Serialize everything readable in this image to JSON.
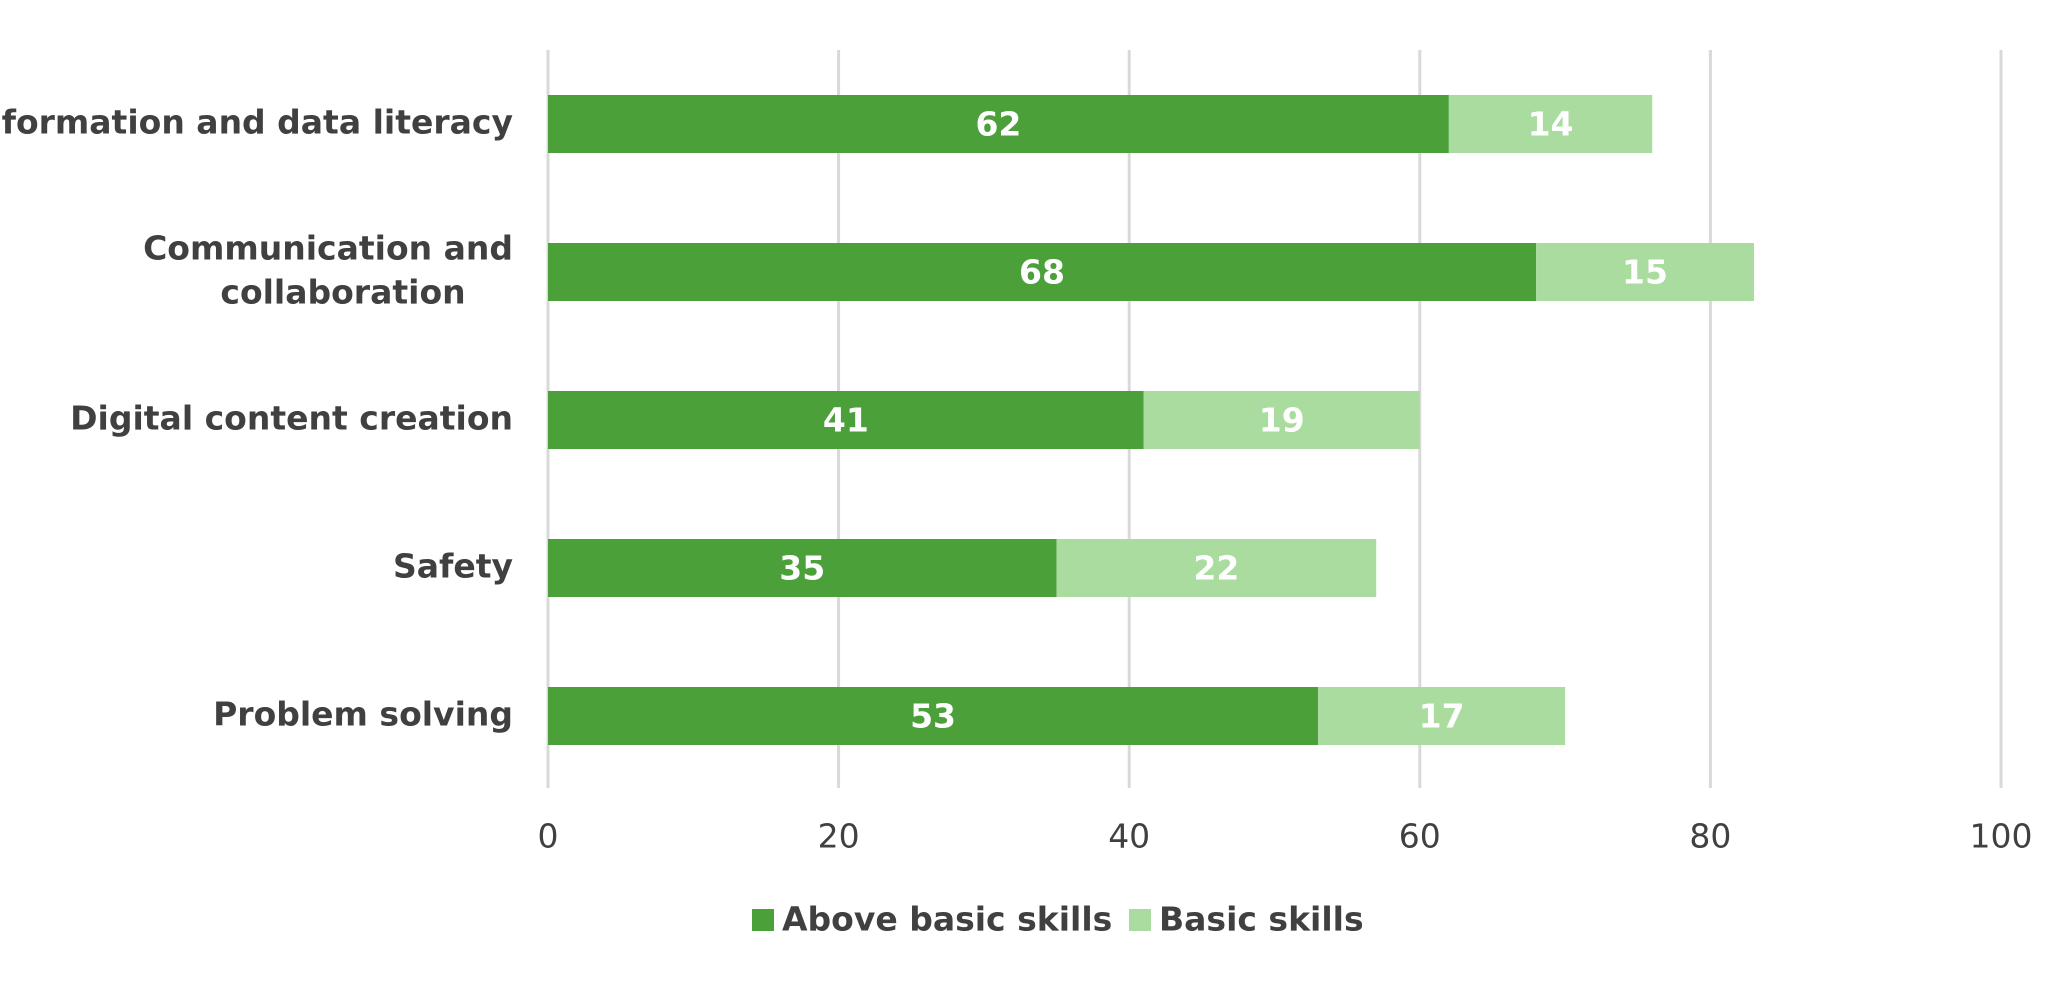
{
  "chart_data": {
    "type": "bar",
    "orientation": "horizontal",
    "stacked": true,
    "categories": [
      [
        "Information and data literacy"
      ],
      [
        "Communication and",
        "collaboration"
      ],
      [
        "Digital content creation"
      ],
      [
        "Safety"
      ],
      [
        "Problem solving"
      ]
    ],
    "series": [
      {
        "name": "Above basic skills",
        "color": "#4ca03a",
        "values": [
          62,
          68,
          41,
          35,
          53
        ]
      },
      {
        "name": "Basic skills",
        "color": "#a9dc9e",
        "values": [
          14,
          15,
          19,
          22,
          17
        ]
      }
    ],
    "xlim": [
      0,
      100
    ],
    "xticks": [
      0,
      20,
      40,
      60,
      80,
      100
    ],
    "grid": true,
    "legend_position": "bottom"
  }
}
